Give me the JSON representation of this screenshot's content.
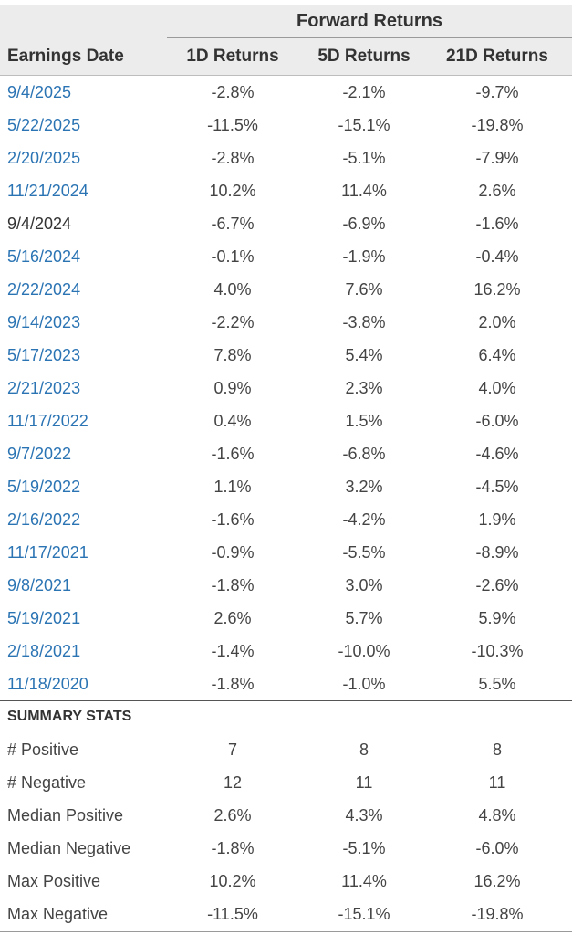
{
  "table": {
    "group_header": "Forward Returns",
    "headers": {
      "date": "Earnings Date",
      "d1": "1D Returns",
      "d5": "5D Returns",
      "d21": "21D Returns"
    },
    "rows": [
      {
        "date": "9/4/2025",
        "linked": true,
        "d1": "-2.8%",
        "d5": "-2.1%",
        "d21": "-9.7%"
      },
      {
        "date": "5/22/2025",
        "linked": true,
        "d1": "-11.5%",
        "d5": "-15.1%",
        "d21": "-19.8%"
      },
      {
        "date": "2/20/2025",
        "linked": true,
        "d1": "-2.8%",
        "d5": "-5.1%",
        "d21": "-7.9%"
      },
      {
        "date": "11/21/2024",
        "linked": true,
        "d1": "10.2%",
        "d5": "11.4%",
        "d21": "2.6%"
      },
      {
        "date": "9/4/2024",
        "linked": false,
        "d1": "-6.7%",
        "d5": "-6.9%",
        "d21": "-1.6%"
      },
      {
        "date": "5/16/2024",
        "linked": true,
        "d1": "-0.1%",
        "d5": "-1.9%",
        "d21": "-0.4%"
      },
      {
        "date": "2/22/2024",
        "linked": true,
        "d1": "4.0%",
        "d5": "7.6%",
        "d21": "16.2%"
      },
      {
        "date": "9/14/2023",
        "linked": true,
        "d1": "-2.2%",
        "d5": "-3.8%",
        "d21": "2.0%"
      },
      {
        "date": "5/17/2023",
        "linked": true,
        "d1": "7.8%",
        "d5": "5.4%",
        "d21": "6.4%"
      },
      {
        "date": "2/21/2023",
        "linked": true,
        "d1": "0.9%",
        "d5": "2.3%",
        "d21": "4.0%"
      },
      {
        "date": "11/17/2022",
        "linked": true,
        "d1": "0.4%",
        "d5": "1.5%",
        "d21": "-6.0%"
      },
      {
        "date": "9/7/2022",
        "linked": true,
        "d1": "-1.6%",
        "d5": "-6.8%",
        "d21": "-4.6%"
      },
      {
        "date": "5/19/2022",
        "linked": true,
        "d1": "1.1%",
        "d5": "3.2%",
        "d21": "-4.5%"
      },
      {
        "date": "2/16/2022",
        "linked": true,
        "d1": "-1.6%",
        "d5": "-4.2%",
        "d21": "1.9%"
      },
      {
        "date": "11/17/2021",
        "linked": true,
        "d1": "-0.9%",
        "d5": "-5.5%",
        "d21": "-8.9%"
      },
      {
        "date": "9/8/2021",
        "linked": true,
        "d1": "-1.8%",
        "d5": "3.0%",
        "d21": "-2.6%"
      },
      {
        "date": "5/19/2021",
        "linked": true,
        "d1": "2.6%",
        "d5": "5.7%",
        "d21": "5.9%"
      },
      {
        "date": "2/18/2021",
        "linked": true,
        "d1": "-1.4%",
        "d5": "-10.0%",
        "d21": "-10.3%"
      },
      {
        "date": "11/18/2020",
        "linked": true,
        "d1": "-1.8%",
        "d5": "-1.0%",
        "d21": "5.5%"
      }
    ]
  },
  "summary": {
    "title": "SUMMARY STATS",
    "rows": [
      {
        "label": "# Positive",
        "d1": "7",
        "d5": "8",
        "d21": "8"
      },
      {
        "label": "# Negative",
        "d1": "12",
        "d5": "11",
        "d21": "11"
      },
      {
        "label": "Median Positive",
        "d1": "2.6%",
        "d5": "4.3%",
        "d21": "4.8%"
      },
      {
        "label": "Median Negative",
        "d1": "-1.8%",
        "d5": "-5.1%",
        "d21": "-6.0%"
      },
      {
        "label": "Max Positive",
        "d1": "10.2%",
        "d5": "11.4%",
        "d21": "16.2%"
      },
      {
        "label": "Max Negative",
        "d1": "-11.5%",
        "d5": "-15.1%",
        "d21": "-19.8%"
      }
    ]
  },
  "colors": {
    "header_bg": "#ececec",
    "link": "#2b74b4",
    "text": "#333333"
  }
}
